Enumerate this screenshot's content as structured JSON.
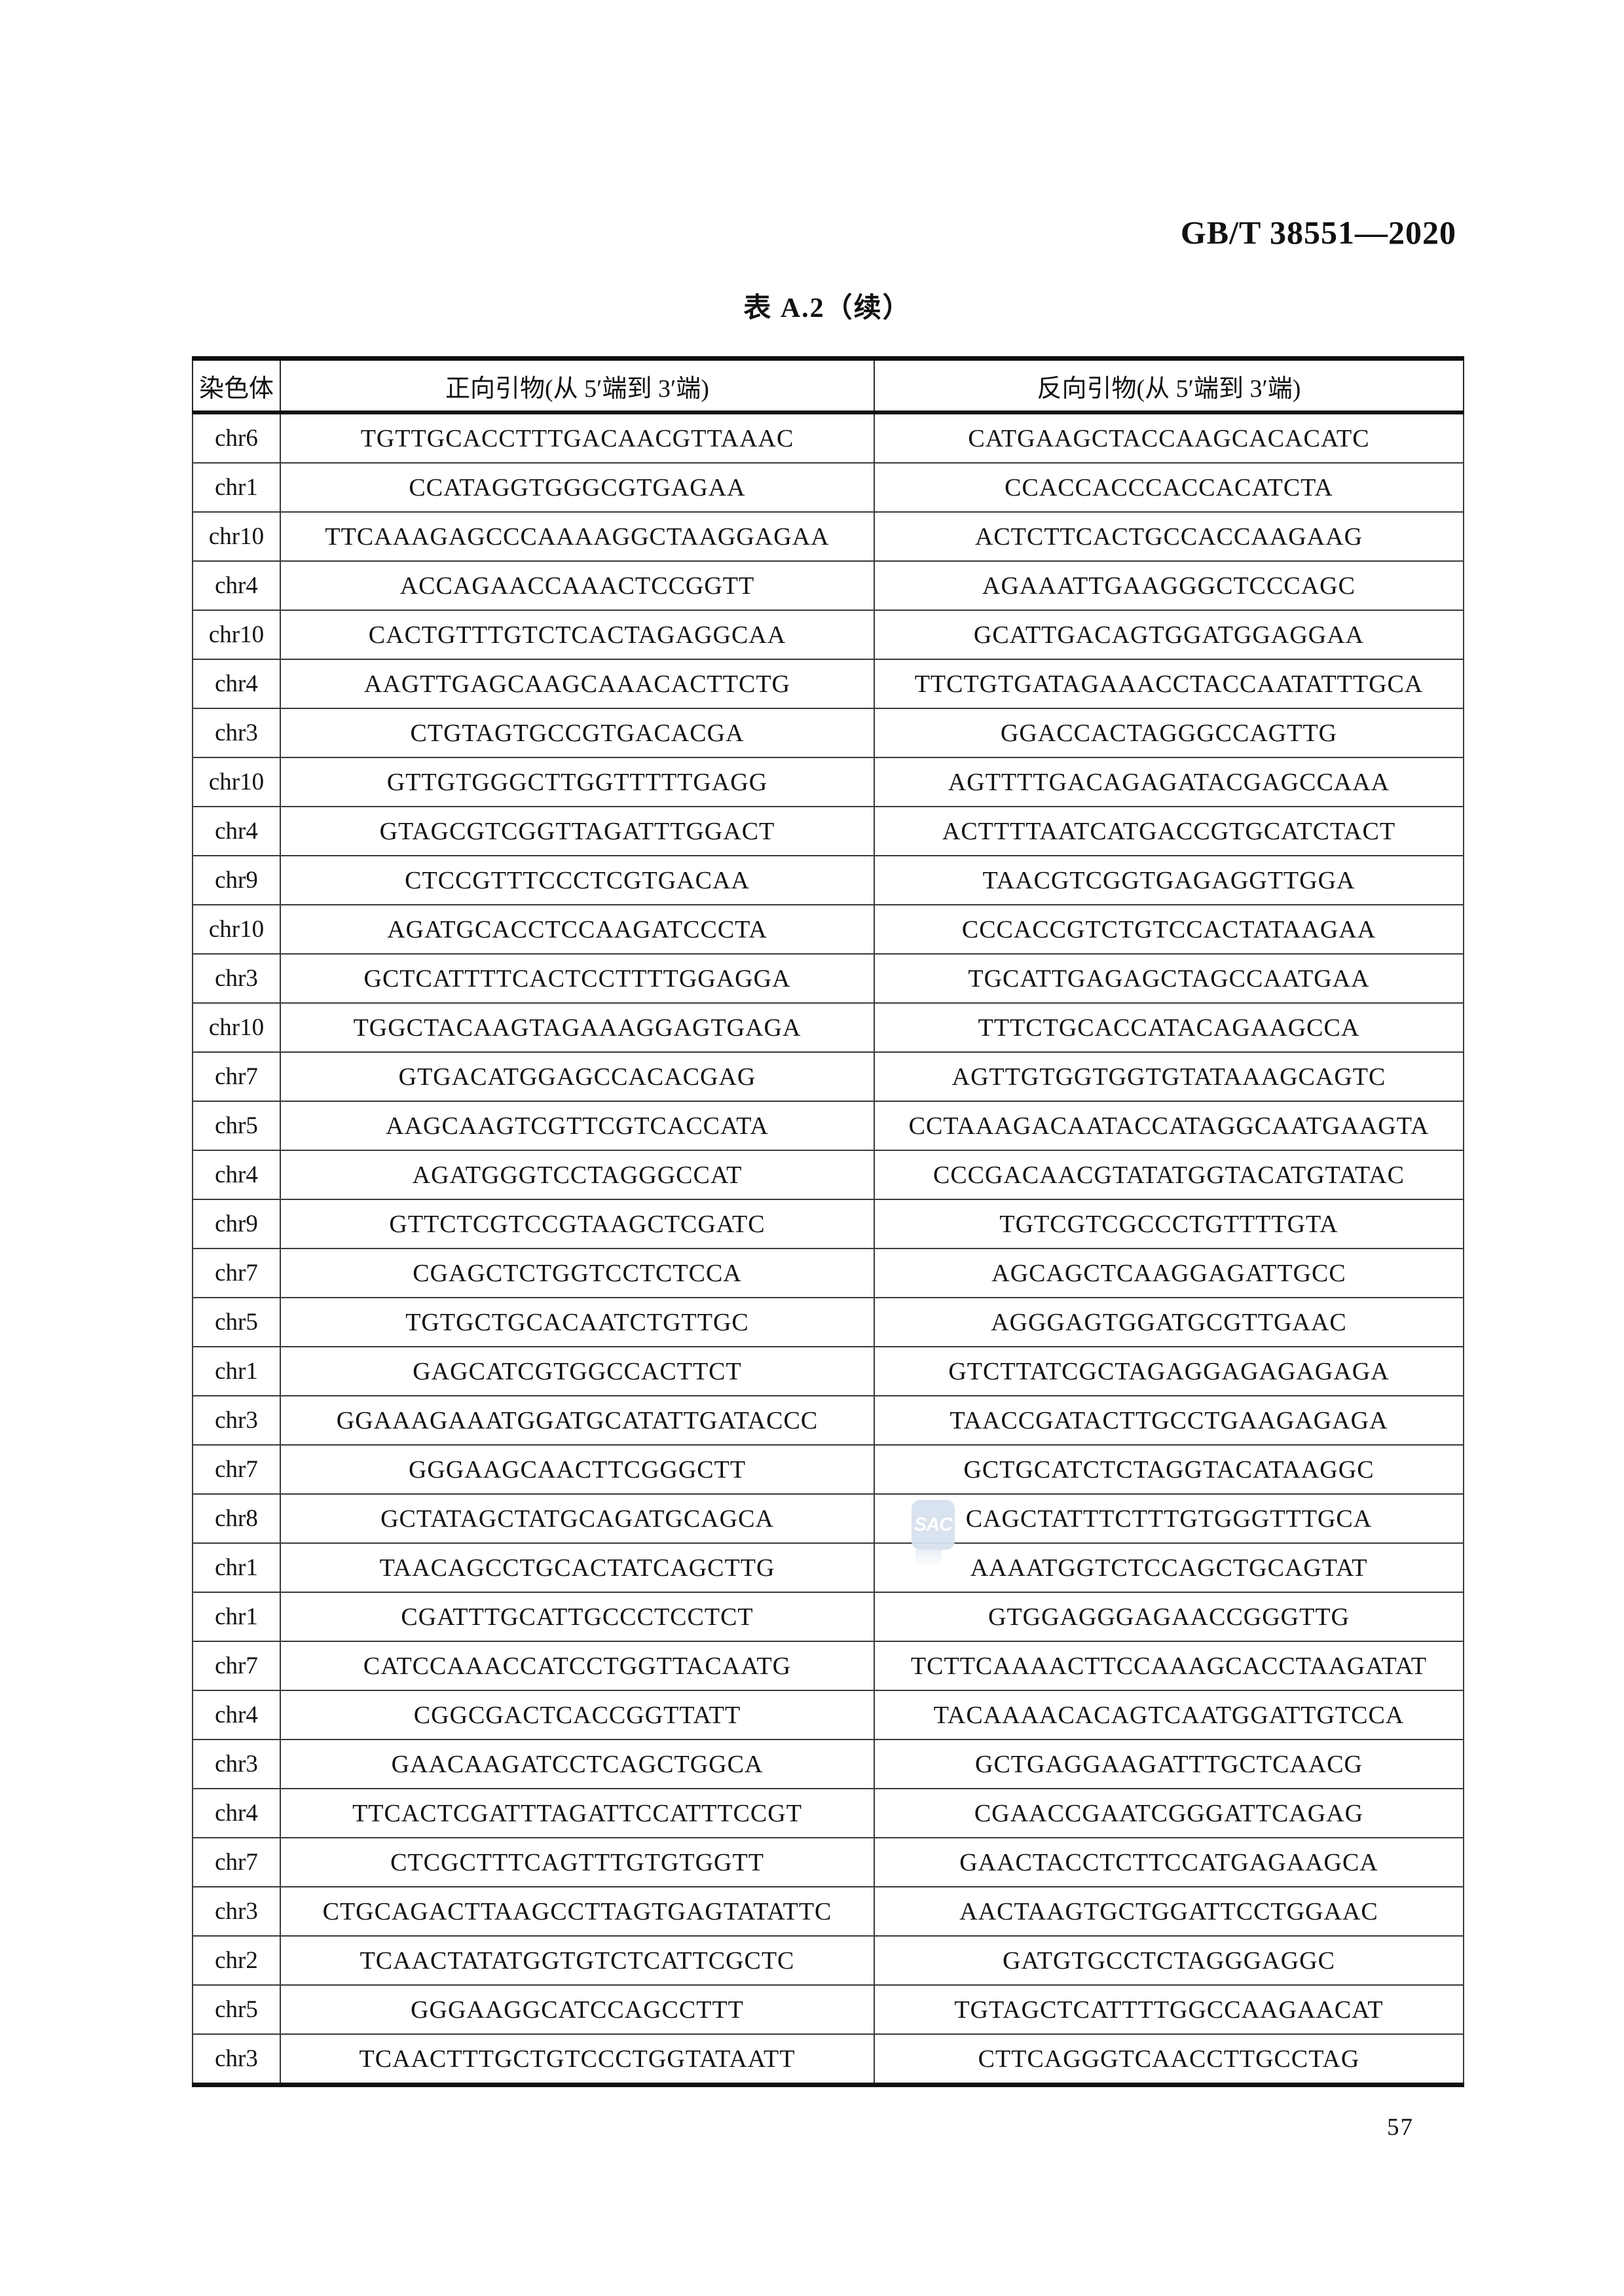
{
  "header": {
    "standard_code": "GB/T 38551—2020"
  },
  "table": {
    "title": "表 A.2（续）",
    "columns": [
      "染色体",
      "正向引物(从 5′端到 3′端)",
      "反向引物(从 5′端到 3′端)"
    ],
    "rows": [
      {
        "chr": "chr6",
        "forward": "TGTTGCACCTTTGACAACGTTAAAC",
        "reverse": "CATGAAGCTACCAAGCACACATC"
      },
      {
        "chr": "chr1",
        "forward": "CCATAGGTGGGCGTGAGAA",
        "reverse": "CCACCACCCACCACATCTA"
      },
      {
        "chr": "chr10",
        "forward": "TTCAAAGAGCCCAAAAGGCTAAGGAGAA",
        "reverse": "ACTCTTCACTGCCACCAAGAAG"
      },
      {
        "chr": "chr4",
        "forward": "ACCAGAACCAAACTCCGGTT",
        "reverse": "AGAAATTGAAGGGCTCCCAGC"
      },
      {
        "chr": "chr10",
        "forward": "CACTGTTTGTCTCACTAGAGGCAA",
        "reverse": "GCATTGACAGTGGATGGAGGAA"
      },
      {
        "chr": "chr4",
        "forward": "AAGTTGAGCAAGCAAACACTTCTG",
        "reverse": "TTCTGTGATAGAAACCTACCAATATTTGCA"
      },
      {
        "chr": "chr3",
        "forward": "CTGTAGTGCCGTGACACGA",
        "reverse": "GGACCACTAGGGCCAGTTG"
      },
      {
        "chr": "chr10",
        "forward": "GTTGTGGGCTTGGTTTTTGAGG",
        "reverse": "AGTTTTGACAGAGATACGAGCCAAA"
      },
      {
        "chr": "chr4",
        "forward": "GTAGCGTCGGTTAGATTTGGACT",
        "reverse": "ACTTTTAATCATGACCGTGCATCTACT"
      },
      {
        "chr": "chr9",
        "forward": "CTCCGTTTCCCTCGTGACAA",
        "reverse": "TAACGTCGGTGAGAGGTTGGA"
      },
      {
        "chr": "chr10",
        "forward": "AGATGCACCTCCAAGATCCCTA",
        "reverse": "CCCACCGTCTGTCCACTATAAGAA"
      },
      {
        "chr": "chr3",
        "forward": "GCTCATTTTCACTCCTTTTGGAGGA",
        "reverse": "TGCATTGAGAGCTAGCCAATGAA"
      },
      {
        "chr": "chr10",
        "forward": "TGGCTACAAGTAGAAAGGAGTGAGA",
        "reverse": "TTTCTGCACCATACAGAAGCCA"
      },
      {
        "chr": "chr7",
        "forward": "GTGACATGGAGCCACACGAG",
        "reverse": "AGTTGTGGTGGTGTATAAAGCAGTC"
      },
      {
        "chr": "chr5",
        "forward": "AAGCAAGTCGTTCGTCACCATA",
        "reverse": "CCTAAAGACAATACCATAGGCAATGAAGTA"
      },
      {
        "chr": "chr4",
        "forward": "AGATGGGTCCTAGGGCCAT",
        "reverse": "CCCGACAACGTATATGGTACATGTATAC"
      },
      {
        "chr": "chr9",
        "forward": "GTTCTCGTCCGTAAGCTCGATC",
        "reverse": "TGTCGTCGCCCTGTTTTGTA"
      },
      {
        "chr": "chr7",
        "forward": "CGAGCTCTGGTCCTCTCCA",
        "reverse": "AGCAGCTCAAGGAGATTGCC"
      },
      {
        "chr": "chr5",
        "forward": "TGTGCTGCACAATCTGTTGC",
        "reverse": "AGGGAGTGGATGCGTTGAAC"
      },
      {
        "chr": "chr1",
        "forward": "GAGCATCGTGGCCACTTCT",
        "reverse": "GTCTTATCGCTAGAGGAGAGAGAGA"
      },
      {
        "chr": "chr3",
        "forward": "GGAAAGAAATGGATGCATATTGATACCC",
        "reverse": "TAACCGATACTTGCCTGAAGAGAGA"
      },
      {
        "chr": "chr7",
        "forward": "GGGAAGCAACTTCGGGCTT",
        "reverse": "GCTGCATCTCTAGGTACATAAGGC"
      },
      {
        "chr": "chr8",
        "forward": "GCTATAGCTATGCAGATGCAGCA",
        "reverse": "CAGCTATTTCTTTGTGGGTTTGCA"
      },
      {
        "chr": "chr1",
        "forward": "TAACAGCCTGCACTATCAGCTTG",
        "reverse": "AAAATGGTCTCCAGCTGCAGTAT"
      },
      {
        "chr": "chr1",
        "forward": "CGATTTGCATTGCCCTCCTCT",
        "reverse": "GTGGAGGGAGAACCGGGTTG"
      },
      {
        "chr": "chr7",
        "forward": "CATCCAAACCATCCTGGTTACAATG",
        "reverse": "TCTTCAAAACTTCCAAAGCACCTAAGATAT"
      },
      {
        "chr": "chr4",
        "forward": "CGGCGACTCACCGGTTATT",
        "reverse": "TACAAAACACAGTCAATGGATTGTCCA"
      },
      {
        "chr": "chr3",
        "forward": "GAACAAGATCCTCAGCTGGCA",
        "reverse": "GCTGAGGAAGATTTGCTCAACG"
      },
      {
        "chr": "chr4",
        "forward": "TTCACTCGATTTAGATTCCATTTCCGT",
        "reverse": "CGAACCGAATCGGGATTCAGAG"
      },
      {
        "chr": "chr7",
        "forward": "CTCGCTTTCAGTTTGTGTGGTT",
        "reverse": "GAACTACCTCTTCCATGAGAAGCA"
      },
      {
        "chr": "chr3",
        "forward": "CTGCAGACTTAAGCCTTAGTGAGTATATTC",
        "reverse": "AACTAAGTGCTGGATTCCTGGAAC"
      },
      {
        "chr": "chr2",
        "forward": "TCAACTATATGGTGTCTCATTCGCTC",
        "reverse": "GATGTGCCTCTAGGGAGGC"
      },
      {
        "chr": "chr5",
        "forward": "GGGAAGGCATCCAGCCTTT",
        "reverse": "TGTAGCTCATTTTGGCCAAGAACAT"
      },
      {
        "chr": "chr3",
        "forward": "TCAACTTTGCTGTCCCTGGTATAATT",
        "reverse": "CTTCAGGGTCAACCTTGCCTAG"
      }
    ]
  },
  "watermark": {
    "text": "SAC",
    "color": "#d7e1ef"
  },
  "footer": {
    "page_number": "57"
  }
}
